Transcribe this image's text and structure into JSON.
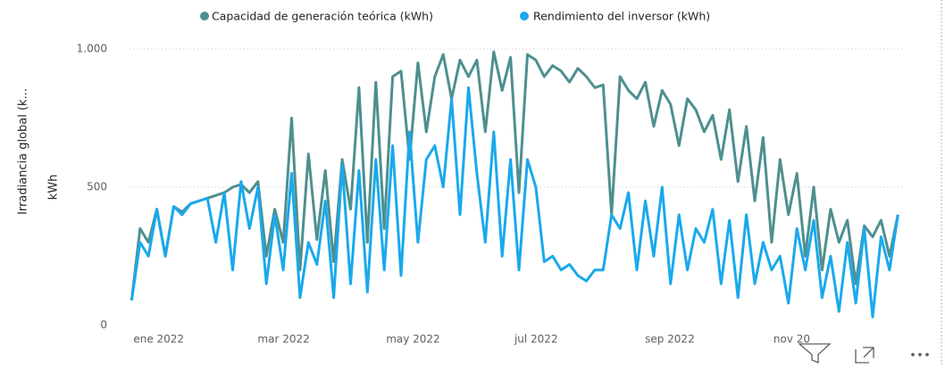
{
  "chart_data": {
    "type": "line",
    "y_axis_label": "kWh",
    "secondary_label": "Irradiancia global (k...",
    "x": [
      0,
      4,
      8,
      12,
      16,
      20,
      24,
      28,
      32,
      36,
      40,
      44,
      48,
      52,
      56,
      60,
      64,
      68,
      72,
      76,
      80,
      84,
      88,
      92,
      96,
      100,
      104,
      108,
      112,
      116,
      120,
      124,
      128,
      132,
      136,
      140,
      144,
      148,
      152,
      156,
      160,
      164,
      168,
      172,
      176,
      180,
      184,
      188,
      192,
      196,
      200,
      204,
      208,
      212,
      216,
      220,
      224,
      228,
      232,
      236,
      240,
      244,
      248,
      252,
      256,
      260,
      264,
      268,
      272,
      276,
      280,
      284,
      288,
      292,
      296,
      300,
      304,
      308,
      312,
      316,
      320,
      324,
      328,
      332,
      336,
      340,
      344,
      348,
      352,
      356,
      360,
      364
    ],
    "series": [
      {
        "name": "Capacidad de generación teórica (kWh)",
        "color": "#4e8f8f",
        "values": [
          90,
          350,
          300,
          420,
          250,
          430,
          410,
          440,
          450,
          460,
          470,
          480,
          500,
          510,
          480,
          520,
          250,
          420,
          300,
          750,
          200,
          620,
          310,
          560,
          230,
          600,
          420,
          860,
          300,
          880,
          350,
          900,
          920,
          600,
          950,
          700,
          900,
          980,
          820,
          960,
          900,
          960,
          700,
          990,
          850,
          970,
          480,
          980,
          960,
          900,
          940,
          920,
          880,
          930,
          900,
          860,
          870,
          400,
          900,
          850,
          820,
          880,
          720,
          850,
          800,
          650,
          820,
          780,
          700,
          760,
          600,
          780,
          520,
          720,
          450,
          680,
          300,
          600,
          400,
          550,
          250,
          500,
          200,
          420,
          300,
          380,
          150,
          360,
          320,
          380,
          250,
          400
        ]
      },
      {
        "name": "Rendimiento del inversor (kWh)",
        "color": "#19a9ec",
        "values": [
          90,
          300,
          250,
          420,
          250,
          430,
          400,
          440,
          450,
          460,
          300,
          480,
          200,
          520,
          350,
          500,
          150,
          400,
          200,
          550,
          100,
          300,
          220,
          450,
          100,
          580,
          150,
          560,
          120,
          600,
          200,
          650,
          180,
          700,
          300,
          600,
          650,
          500,
          820,
          400,
          860,
          550,
          300,
          700,
          250,
          600,
          200,
          600,
          500,
          230,
          250,
          200,
          220,
          180,
          160,
          200,
          200,
          400,
          350,
          480,
          200,
          450,
          250,
          500,
          150,
          400,
          200,
          350,
          300,
          420,
          150,
          380,
          100,
          400,
          150,
          300,
          200,
          250,
          80,
          350,
          200,
          380,
          100,
          250,
          50,
          300,
          80,
          350,
          30,
          320,
          200,
          400
        ]
      }
    ],
    "xlim": [
      -1,
      366
    ],
    "xticks": [
      {
        "value": 0,
        "label": "ene 2022"
      },
      {
        "value": 59,
        "label": "mar 2022"
      },
      {
        "value": 120,
        "label": "may 2022"
      },
      {
        "value": 181,
        "label": "jul 2022"
      },
      {
        "value": 243,
        "label": "sep 2022"
      },
      {
        "value": 304,
        "label": "nov 20"
      }
    ],
    "ylim": [
      0,
      1000
    ],
    "yticks": [
      0,
      500,
      {
        "value": 1000,
        "label": "1.000"
      }
    ],
    "grid": true
  }
}
